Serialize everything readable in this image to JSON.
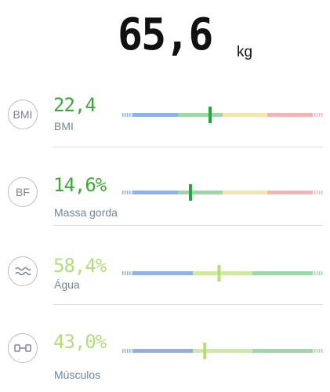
{
  "weight": {
    "value": "65,6",
    "unit": "kg"
  },
  "metrics": [
    {
      "id": "bmi",
      "icon": "bmi-icon",
      "icon_text": "BMI",
      "value": "22,4",
      "label": "BMI",
      "value_color": "#3aaa35",
      "marker_color": "#22a83a",
      "level": 0.43,
      "segments": [
        "#8fb2e6",
        "#9fd8a8",
        "#f5e3b2",
        "#f0b5b5"
      ]
    },
    {
      "id": "bf",
      "icon": "bf-icon",
      "icon_text": "BF",
      "value": "14,6%",
      "label": "Massa gorda",
      "value_color": "#3aaa35",
      "marker_color": "#22a83a",
      "level": 0.32,
      "segments": [
        "#8fb2e6",
        "#9fd8a8",
        "#f5e3b2",
        "#f0b5b5"
      ]
    },
    {
      "id": "agua",
      "icon": "water-waves-icon",
      "icon_text": "",
      "value": "58,4%",
      "label": "Água",
      "value_color": "#b3dc7a",
      "marker_color": "#b3dc7a",
      "level": 0.48,
      "segments": [
        "#8fb2e6",
        "#cdeaa3",
        "#9fd8a8"
      ]
    },
    {
      "id": "musculos",
      "icon": "muscle-dumbbell-icon",
      "icon_text": "",
      "value": "43,0%",
      "label": "Músculos",
      "value_color": "#b3dc7a",
      "marker_color": "#b3dc7a",
      "level": 0.4,
      "segments": [
        "#8fb2e6",
        "#cdeaa3",
        "#9fd8a8"
      ]
    }
  ]
}
